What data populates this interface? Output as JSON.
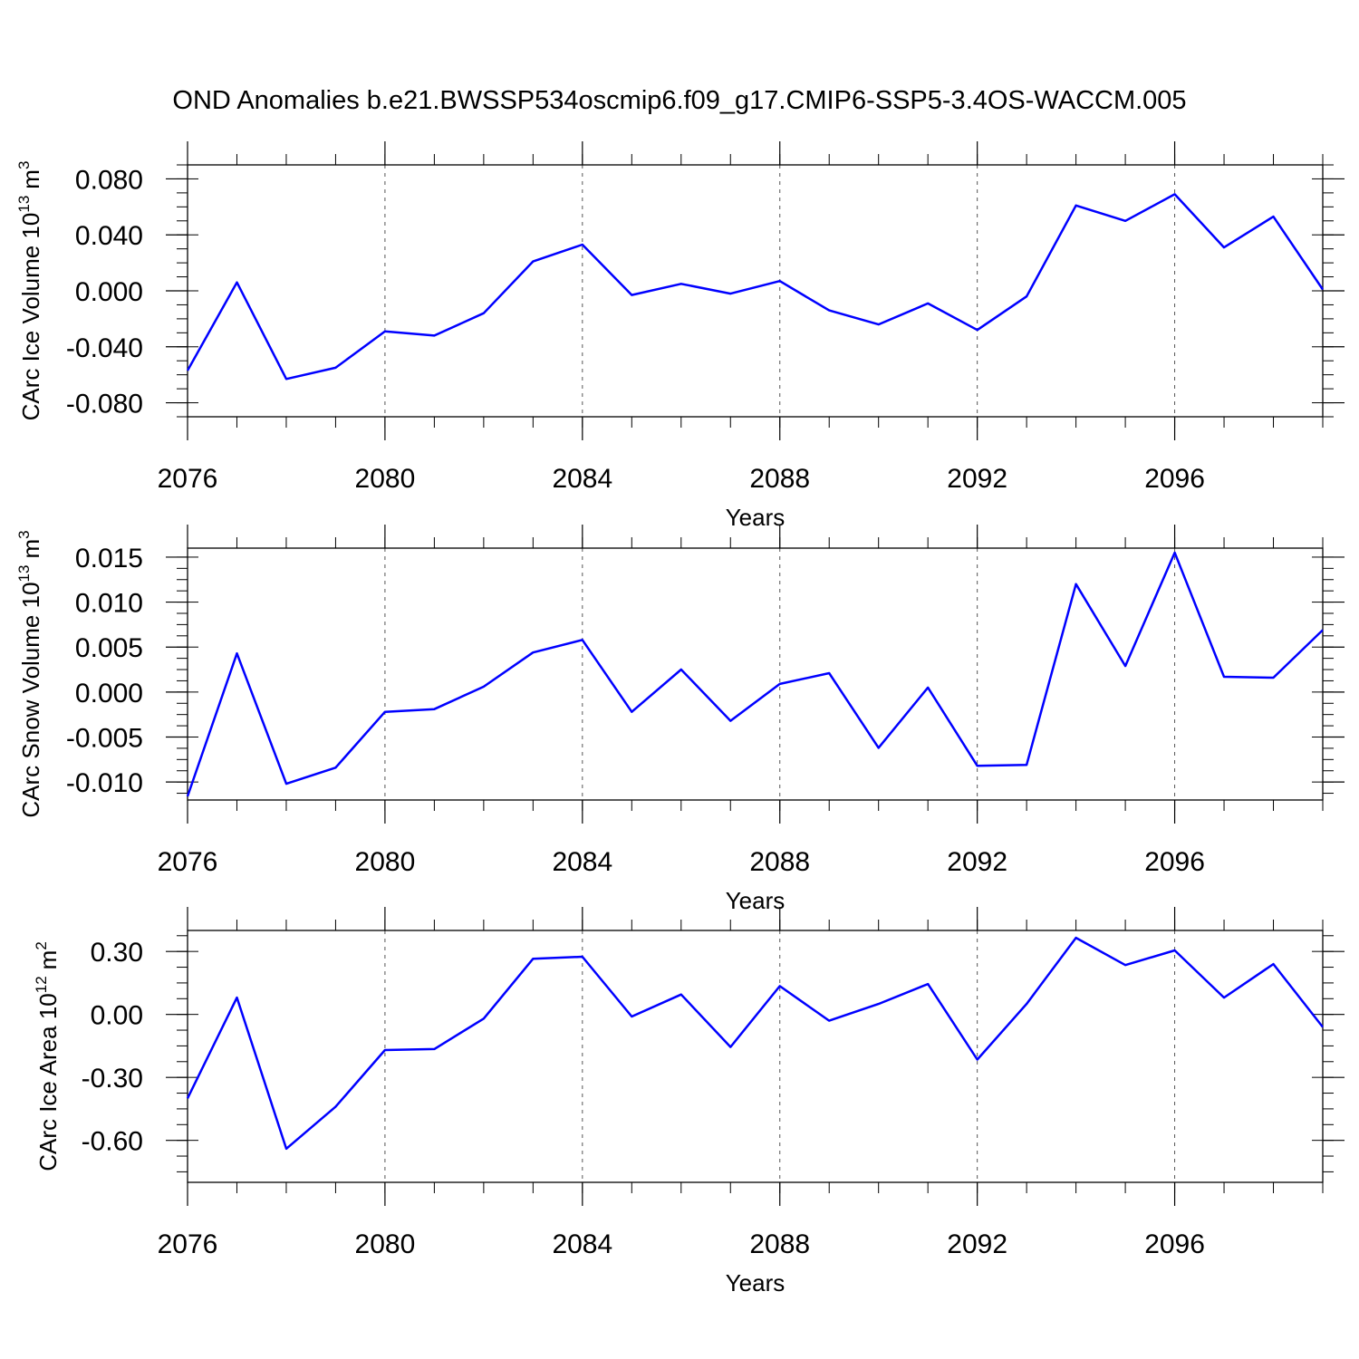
{
  "title": "OND Anomalies b.e21.BWSSP534oscmip6.f09_g17.CMIP6-SSP5-3.4OS-WACCM.005",
  "line_color": "#0000ff",
  "chart_data": [
    {
      "type": "line",
      "ylabel_main": "CArc Ice Volume 10",
      "ylabel_exp": "13",
      "ylabel_unit": "m",
      "ylabel_unit_exp": "3",
      "xlabel": "Years",
      "xlim": [
        2076,
        2099
      ],
      "ylim": [
        -0.09,
        0.09
      ],
      "yticks": [
        -0.08,
        -0.04,
        0.0,
        0.04,
        0.08
      ],
      "ytick_labels": [
        "-0.080",
        "-0.040",
        "0.000",
        "0.040",
        "0.080"
      ],
      "xticks": [
        2076,
        2080,
        2084,
        2088,
        2092,
        2096
      ],
      "xtick_labels": [
        "2076",
        "2080",
        "2084",
        "2088",
        "2092",
        "2096"
      ],
      "x": [
        2076,
        2077,
        2078,
        2079,
        2080,
        2081,
        2082,
        2083,
        2084,
        2085,
        2086,
        2087,
        2088,
        2089,
        2090,
        2091,
        2092,
        2093,
        2094,
        2095,
        2096,
        2097,
        2098,
        2099
      ],
      "values": [
        -0.057,
        0.006,
        -0.063,
        -0.055,
        -0.029,
        -0.032,
        -0.016,
        0.021,
        0.033,
        -0.003,
        0.005,
        -0.002,
        0.007,
        -0.014,
        -0.024,
        -0.009,
        -0.028,
        -0.004,
        0.061,
        0.05,
        0.069,
        0.031,
        0.053,
        0.001
      ]
    },
    {
      "type": "line",
      "ylabel_main": "CArc Snow Volume 10",
      "ylabel_exp": "13",
      "ylabel_unit": "m",
      "ylabel_unit_exp": "3",
      "xlabel": "Years",
      "xlim": [
        2076,
        2099
      ],
      "ylim": [
        -0.012,
        0.016
      ],
      "yticks": [
        -0.01,
        -0.005,
        0.0,
        0.005,
        0.01,
        0.015
      ],
      "ytick_labels": [
        "-0.010",
        "-0.005",
        "0.000",
        "0.005",
        "0.010",
        "0.015"
      ],
      "xticks": [
        2076,
        2080,
        2084,
        2088,
        2092,
        2096
      ],
      "xtick_labels": [
        "2076",
        "2080",
        "2084",
        "2088",
        "2092",
        "2096"
      ],
      "x": [
        2076,
        2077,
        2078,
        2079,
        2080,
        2081,
        2082,
        2083,
        2084,
        2085,
        2086,
        2087,
        2088,
        2089,
        2090,
        2091,
        2092,
        2093,
        2094,
        2095,
        2096,
        2097,
        2098,
        2099
      ],
      "values": [
        -0.0116,
        0.0043,
        -0.0102,
        -0.0084,
        -0.0022,
        -0.0019,
        0.0006,
        0.0044,
        0.0058,
        -0.0022,
        0.0025,
        -0.0032,
        0.0009,
        0.0021,
        -0.0062,
        0.0005,
        -0.0082,
        -0.0081,
        0.012,
        0.0029,
        0.0155,
        0.0017,
        0.0016,
        0.0069
      ]
    },
    {
      "type": "line",
      "ylabel_main": "CArc Ice Area 10",
      "ylabel_exp": "12",
      "ylabel_unit": "m",
      "ylabel_unit_exp": "2",
      "xlabel": "Years",
      "xlim": [
        2076,
        2099
      ],
      "ylim": [
        -0.8,
        0.4
      ],
      "yticks": [
        -0.6,
        -0.3,
        0.0,
        0.3
      ],
      "ytick_labels": [
        "-0.60",
        "-0.30",
        "0.00",
        "0.30"
      ],
      "xticks": [
        2076,
        2080,
        2084,
        2088,
        2092,
        2096
      ],
      "xtick_labels": [
        "2076",
        "2080",
        "2084",
        "2088",
        "2092",
        "2096"
      ],
      "x": [
        2076,
        2077,
        2078,
        2079,
        2080,
        2081,
        2082,
        2083,
        2084,
        2085,
        2086,
        2087,
        2088,
        2089,
        2090,
        2091,
        2092,
        2093,
        2094,
        2095,
        2096,
        2097,
        2098,
        2099
      ],
      "values": [
        -0.4,
        0.08,
        -0.64,
        -0.44,
        -0.17,
        -0.165,
        -0.02,
        0.265,
        0.275,
        -0.01,
        0.095,
        -0.155,
        0.135,
        -0.03,
        0.05,
        0.145,
        -0.215,
        0.05,
        0.365,
        0.235,
        0.305,
        0.08,
        0.24,
        -0.06
      ]
    }
  ]
}
